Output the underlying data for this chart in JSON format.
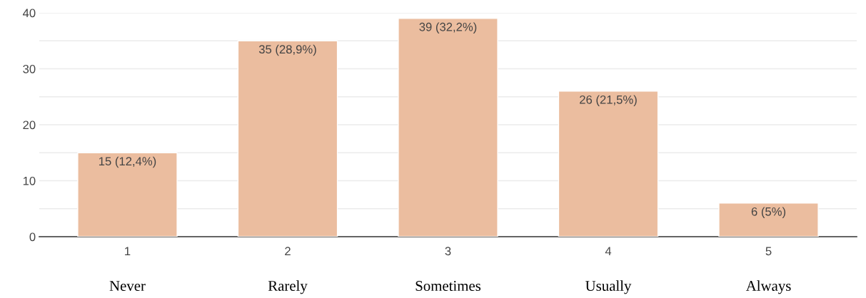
{
  "chart_data": {
    "type": "bar",
    "categories": [
      "1",
      "2",
      "3",
      "4",
      "5"
    ],
    "values": [
      15,
      35,
      39,
      26,
      6
    ],
    "value_labels": [
      "15 (12,4%)",
      "35 (28,9%)",
      "39 (32,2%)",
      "26 (21,5%)",
      "6 (5%)"
    ],
    "color": "#ebbd9f",
    "ylim": [
      0,
      40
    ],
    "yticks": [
      0,
      {
        "value": 5,
        "label": null
      },
      10,
      {
        "value": 15,
        "label": null
      },
      20,
      {
        "value": 25,
        "label": null
      },
      30,
      {
        "value": 35,
        "label": null
      },
      40
    ],
    "grid": "y",
    "annotations": [
      "Never",
      "Rarely",
      "Sometimes",
      "Usually",
      "Always"
    ]
  }
}
